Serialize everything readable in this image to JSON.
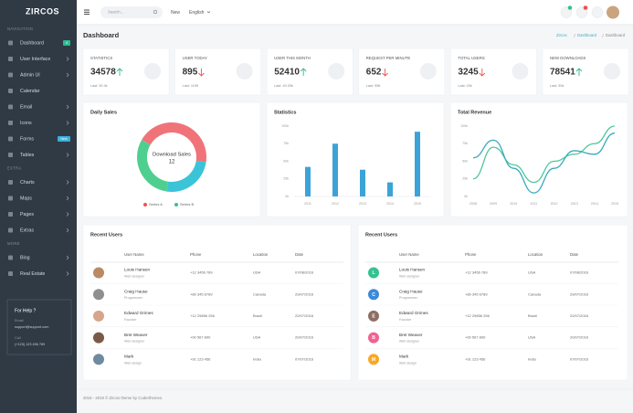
{
  "sidebar": {
    "logo": "ZIRCOS",
    "sections": [
      {
        "heading": "NAVIGATION",
        "items": [
          {
            "label": "Dashboard",
            "badge": "4"
          },
          {
            "label": "User Interface",
            "submenu": true
          },
          {
            "label": "Admin UI",
            "submenu": true
          },
          {
            "label": "Calendar"
          },
          {
            "label": "Email",
            "submenu": true
          },
          {
            "label": "Icons",
            "submenu": true
          },
          {
            "label": "Forms",
            "badge": "New"
          },
          {
            "label": "Tables",
            "submenu": true
          }
        ]
      },
      {
        "heading": "EXTRA",
        "items": [
          {
            "label": "Charts",
            "submenu": true
          },
          {
            "label": "Maps",
            "submenu": true
          },
          {
            "label": "Pages",
            "submenu": true
          },
          {
            "label": "Extras",
            "submenu": true
          }
        ]
      },
      {
        "heading": "MORE",
        "items": [
          {
            "label": "Blog",
            "submenu": true
          },
          {
            "label": "Real Estate",
            "submenu": true
          }
        ]
      }
    ],
    "help": {
      "title": "For Help ?",
      "email_label": "Email",
      "email": "support@support.com",
      "call_label": "Call",
      "phone": "(+123) 123 456 789"
    }
  },
  "topbar": {
    "search_placeholder": "Search...",
    "new": "New",
    "language": "English"
  },
  "header": {
    "title": "Dashboard",
    "breadcrumb": [
      "Zircos",
      "Dashboard",
      "Dashboard"
    ]
  },
  "stats": [
    {
      "label": "STATISTICS",
      "value": 34578,
      "trend": "up",
      "last": "Last: 30.4k"
    },
    {
      "label": "USER TODAY",
      "value": 895,
      "trend": "down",
      "last": "Last: 1195"
    },
    {
      "label": "USER THIS MONTH",
      "value": 52410,
      "trend": "up",
      "last": "Last: 40.33k"
    },
    {
      "label": "REQUEST PER MINUTE",
      "value": 652,
      "trend": "down",
      "last": "Last: 956"
    },
    {
      "label": "TOTAL USERS",
      "value": 3245,
      "trend": "down",
      "last": "Last: 20k"
    },
    {
      "label": "NEW DOWNLOADS",
      "value": 78541,
      "trend": "up",
      "last": "Last: 50k"
    }
  ],
  "chart_data": [
    {
      "type": "donut",
      "title": "Daily Sales",
      "center_label": "Download Sales",
      "center_value": 12,
      "values": [
        44,
        25,
        31
      ],
      "colors": [
        "#f0737a",
        "#3bc4d8",
        "#4fcf8f"
      ],
      "series": [
        {
          "name": "Series A",
          "color": "#f05050"
        },
        {
          "name": "Series B",
          "color": "#34c38f"
        }
      ]
    },
    {
      "type": "bar",
      "title": "Statistics",
      "categories": [
        "2011",
        "2012",
        "2013",
        "2014",
        "2015"
      ],
      "values": [
        42,
        75,
        38,
        20,
        92
      ],
      "color": "#3ca3d8",
      "ylim": [
        0,
        100
      ],
      "yticks": [
        {
          "value": 0,
          "label": "0k"
        },
        {
          "value": 25,
          "label": "25k"
        },
        {
          "value": 50,
          "label": "50k"
        },
        {
          "value": 75,
          "label": "75k"
        },
        {
          "value": 100,
          "label": "100k"
        }
      ],
      "grid": false
    },
    {
      "type": "line",
      "title": "Total Revenue",
      "categories": [
        "2008",
        "2009",
        "2010",
        "2011",
        "2012",
        "2013",
        "2014",
        "2015"
      ],
      "series": [
        {
          "color": "#4fc79a",
          "values": [
            25,
            70,
            45,
            20,
            50,
            60,
            75,
            100
          ]
        },
        {
          "color": "#3aa9bd",
          "values": [
            55,
            80,
            40,
            5,
            40,
            65,
            60,
            90
          ]
        }
      ],
      "ylim": [
        0,
        100
      ],
      "yticks": [
        {
          "value": 0,
          "label": "0k"
        },
        {
          "value": 25,
          "label": "25k"
        },
        {
          "value": 50,
          "label": "50k"
        },
        {
          "value": 75,
          "label": "75k"
        },
        {
          "value": 100,
          "label": "100k"
        }
      ],
      "grid": false
    }
  ],
  "tables": [
    {
      "title": "Recent Users",
      "columns": [
        "User Name",
        "Phone",
        "Location",
        "Date"
      ],
      "rows": [
        {
          "name": "Louis Hansen",
          "role": "Web designer",
          "phone": "+12 3456 789",
          "location": "USA",
          "date": "07/08/2016"
        },
        {
          "name": "Craig Hause",
          "role": "Programmer",
          "phone": "+89 345 6789",
          "location": "Canada",
          "date": "29/07/2016"
        },
        {
          "name": "Edward Grimes",
          "role": "Founder",
          "phone": "+12 29856 256",
          "location": "Brazil",
          "date": "22/07/2016"
        },
        {
          "name": "Bret Weaver",
          "role": "Web designer",
          "phone": "+00 567 890",
          "location": "USA",
          "date": "20/07/2016"
        },
        {
          "name": "Mark",
          "role": "Web design",
          "phone": "+91 123 456",
          "location": "India",
          "date": "07/07/2016"
        }
      ]
    },
    {
      "title": "Recent Users",
      "columns": [
        "User Name",
        "Phone",
        "Location",
        "Date"
      ],
      "rows": [
        {
          "avatar": "L",
          "avatar_color": "#34c38f",
          "name": "Louis Hansen",
          "role": "Web designer",
          "phone": "+12 3456 789",
          "location": "USA",
          "date": "07/08/2016"
        },
        {
          "avatar": "C",
          "avatar_color": "#3b8ad9",
          "name": "Craig Hause",
          "role": "Programmer",
          "phone": "+89 345 6789",
          "location": "Canada",
          "date": "29/07/2016"
        },
        {
          "avatar": "E",
          "avatar_color": "#8d6e63",
          "name": "Edward Grimes",
          "role": "Founder",
          "phone": "+12 29856 256",
          "location": "Brazil",
          "date": "22/07/2016"
        },
        {
          "avatar": "B",
          "avatar_color": "#f06292",
          "name": "Bret Weaver",
          "role": "Web designer",
          "phone": "+00 567 890",
          "location": "USA",
          "date": "20/07/2016"
        },
        {
          "avatar": "M",
          "avatar_color": "#f9a825",
          "name": "Mark",
          "role": "Web design",
          "phone": "+91 123 456",
          "location": "India",
          "date": "07/07/2016"
        }
      ]
    }
  ],
  "footer": "2016 - 2019 © Zircos theme by Coderthemes."
}
